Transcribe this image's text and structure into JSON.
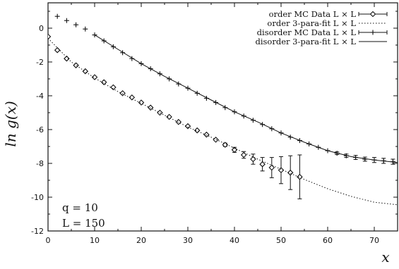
{
  "chart_data": {
    "type": "scatter",
    "title": "",
    "xlabel": "x",
    "ylabel": "ln g(x)",
    "xlim": [
      0,
      75
    ],
    "ylim": [
      -12,
      1.5
    ],
    "x_ticks": [
      0,
      10,
      20,
      30,
      40,
      50,
      60,
      70
    ],
    "y_ticks": [
      0,
      -2,
      -4,
      -6,
      -8,
      -10,
      -12
    ],
    "grid": false,
    "legend_position": "top-right",
    "annotations": [
      "q = 10",
      "L = 150"
    ],
    "series": [
      {
        "name": "order MC Data L × L",
        "marker": "diamond",
        "x": [
          0,
          2,
          4,
          6,
          8,
          10,
          12,
          14,
          16,
          18,
          20,
          22,
          24,
          26,
          28,
          30,
          32,
          34,
          36,
          38,
          40,
          42,
          44,
          46,
          48,
          50,
          52,
          54
        ],
        "y": [
          -0.5,
          -1.3,
          -1.8,
          -2.2,
          -2.55,
          -2.9,
          -3.2,
          -3.5,
          -3.85,
          -4.1,
          -4.4,
          -4.7,
          -5.0,
          -5.25,
          -5.55,
          -5.8,
          -6.05,
          -6.3,
          -6.6,
          -6.9,
          -7.2,
          -7.5,
          -7.75,
          -8.05,
          -8.25,
          -8.4,
          -8.55,
          -8.8
        ],
        "error": [
          0,
          0,
          0,
          0,
          0,
          0,
          0,
          0,
          0,
          0,
          0,
          0,
          0,
          0,
          0,
          0,
          0,
          0,
          0,
          0.1,
          0.15,
          0.2,
          0.3,
          0.4,
          0.6,
          0.8,
          1.0,
          1.3
        ]
      },
      {
        "name": "order 3-para-fit L × L",
        "style": "dotted",
        "x": [
          0,
          5,
          10,
          15,
          20,
          25,
          30,
          35,
          40,
          45,
          50,
          55,
          60,
          65,
          70,
          75
        ],
        "y": [
          -0.6,
          -2.0,
          -2.95,
          -3.75,
          -4.45,
          -5.15,
          -5.85,
          -6.45,
          -7.1,
          -7.75,
          -8.35,
          -8.95,
          -9.5,
          -9.95,
          -10.3,
          -10.45
        ]
      },
      {
        "name": "disorder MC Data L × L",
        "marker": "plus",
        "x": [
          2,
          4,
          6,
          8,
          10,
          12,
          14,
          16,
          18,
          20,
          22,
          24,
          26,
          28,
          30,
          32,
          34,
          36,
          38,
          40,
          42,
          44,
          46,
          48,
          50,
          52,
          54,
          56,
          58,
          60,
          62,
          64,
          66,
          68,
          70,
          72,
          74
        ],
        "y": [
          0.7,
          0.45,
          0.2,
          -0.05,
          -0.4,
          -0.75,
          -1.1,
          -1.45,
          -1.8,
          -2.1,
          -2.4,
          -2.7,
          -3.0,
          -3.3,
          -3.55,
          -3.85,
          -4.15,
          -4.4,
          -4.7,
          -4.95,
          -5.2,
          -5.45,
          -5.7,
          -5.95,
          -6.2,
          -6.45,
          -6.65,
          -6.85,
          -7.05,
          -7.25,
          -7.4,
          -7.55,
          -7.65,
          -7.75,
          -7.8,
          -7.85,
          -7.9
        ],
        "error": [
          0,
          0,
          0,
          0,
          0,
          0,
          0,
          0,
          0,
          0,
          0,
          0,
          0,
          0,
          0,
          0,
          0,
          0,
          0,
          0,
          0,
          0,
          0,
          0,
          0,
          0,
          0,
          0,
          0,
          0,
          0.08,
          0.1,
          0.12,
          0.12,
          0.15,
          0.15,
          0.15
        ]
      },
      {
        "name": "disorder 3-para-fit L × L",
        "style": "solid",
        "x": [
          10,
          15,
          20,
          25,
          30,
          35,
          40,
          45,
          50,
          55,
          60,
          65,
          70,
          75
        ],
        "y": [
          -0.4,
          -1.25,
          -2.1,
          -2.85,
          -3.55,
          -4.25,
          -4.95,
          -5.55,
          -6.2,
          -6.75,
          -7.25,
          -7.6,
          -7.8,
          -7.95
        ]
      }
    ]
  }
}
